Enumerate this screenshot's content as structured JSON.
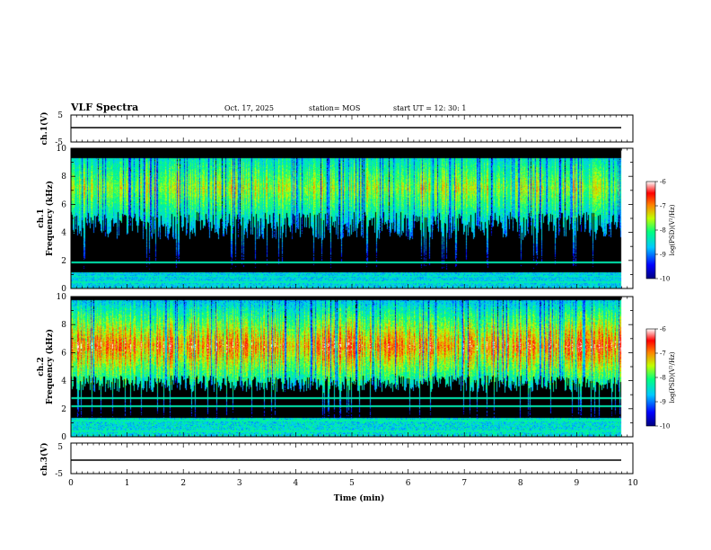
{
  "header": {
    "title": "VLF Spectra",
    "date": "Oct. 17, 2025",
    "station": "station= MOS",
    "start": "start  UT  =   12: 30: 1"
  },
  "chart_data": [
    {
      "type": "line",
      "panel": "ch1-waveform",
      "ylabel": "ch.1(V)",
      "ylim": [
        -5,
        5
      ],
      "yticks": [
        "5",
        "-5"
      ],
      "xlim": [
        0,
        10
      ],
      "series": [
        {
          "values_description_level": 0
        }
      ]
    },
    {
      "type": "heatmap",
      "panel": "ch1-spectrogram",
      "ylabel_line1": "ch.1",
      "ylabel_line2": "Frequency (kHz)",
      "ylim": [
        0,
        10
      ],
      "yticks": [
        "0",
        "2",
        "4",
        "6",
        "8",
        "10"
      ],
      "xlim": [
        0,
        10
      ],
      "data_end_min": 9.8,
      "emission_band_khz": [
        3.5,
        9.3
      ],
      "interference_lines_khz": [
        0.5,
        0.9,
        1.9
      ],
      "colorbar": {
        "label": "log(PSD)(V²/Hz)",
        "range": [
          -10,
          -6
        ],
        "ticks": [
          "-6",
          "-7",
          "-8",
          "-9",
          "-10"
        ]
      }
    },
    {
      "type": "heatmap",
      "panel": "ch2-spectrogram",
      "ylabel_line1": "ch.2",
      "ylabel_line2": "Frequency (kHz)",
      "ylim": [
        0,
        10
      ],
      "yticks": [
        "0",
        "2",
        "4",
        "6",
        "8",
        "10"
      ],
      "xlim": [
        0,
        10
      ],
      "data_end_min": 9.8,
      "emission_band_khz": [
        3.2,
        9.8
      ],
      "peak_khz": 6.5,
      "interference_lines_khz": [
        0.4,
        1.2,
        2.2,
        2.8
      ],
      "colorbar": {
        "label": "log(PSD)(V²/Hz)",
        "range": [
          -10,
          -6
        ],
        "ticks": [
          "-6",
          "-7",
          "-8",
          "-9",
          "-10"
        ]
      }
    },
    {
      "type": "line",
      "panel": "ch3-waveform",
      "ylabel": "ch.3(V)",
      "ylim": [
        -5,
        5
      ],
      "yticks": [
        "5",
        "-5"
      ],
      "xlim": [
        0,
        10
      ],
      "xticks": [
        "0",
        "1",
        "2",
        "3",
        "4",
        "5",
        "6",
        "7",
        "8",
        "9",
        "10"
      ],
      "xlabel": "Time  (min)",
      "series": [
        {
          "values_description_level": 0
        }
      ]
    }
  ],
  "colors": {
    "scale": [
      "#000080",
      "#0000ff",
      "#00c8ff",
      "#00ff80",
      "#c0ff00",
      "#ff8000",
      "#ff0000",
      "#ffffff"
    ]
  }
}
